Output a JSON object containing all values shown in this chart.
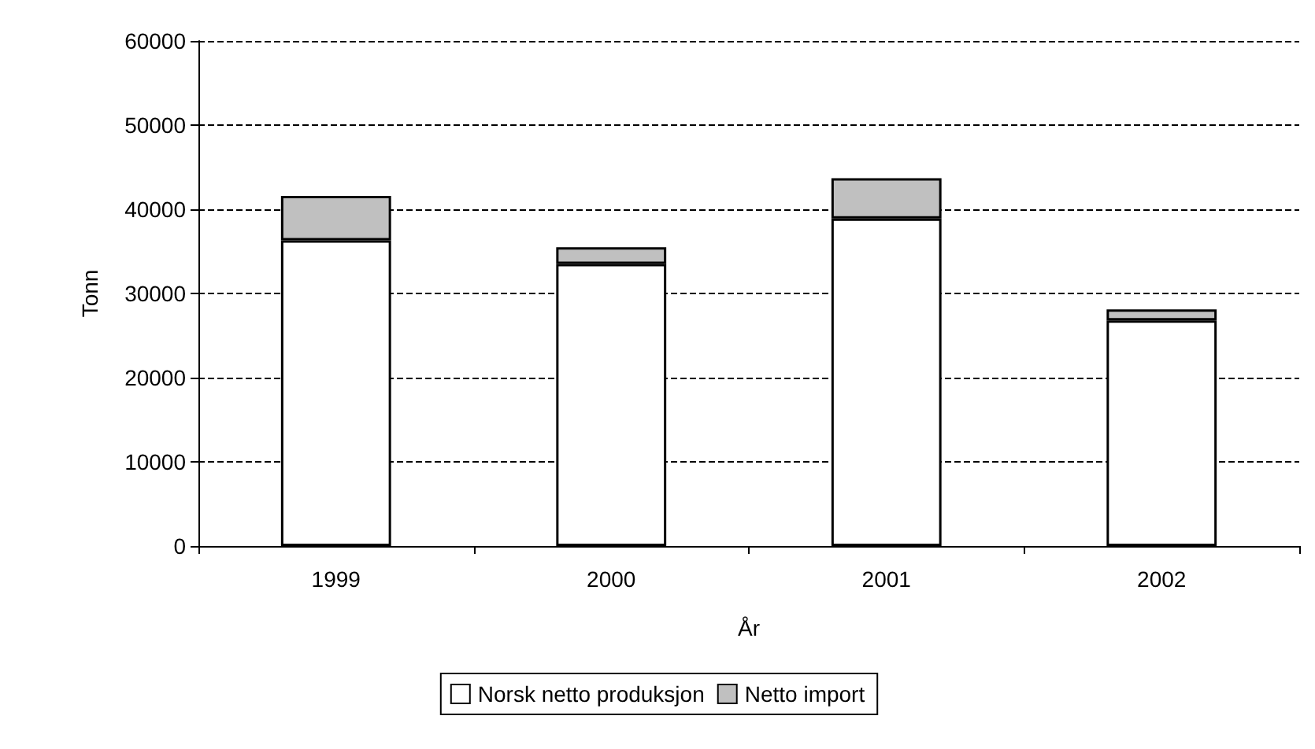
{
  "chart_data": {
    "type": "bar",
    "xlabel": "År",
    "ylabel": "Tonn",
    "categories": [
      "1999",
      "2000",
      "2001",
      "2002"
    ],
    "stacked": true,
    "series": [
      {
        "name": "Norsk netto produksjon",
        "color": "#ffffff",
        "values": [
          36300,
          33500,
          38900,
          26800
        ]
      },
      {
        "name": "Netto import",
        "color": "#c0c0c0",
        "values": [
          5300,
          2000,
          4800,
          1300
        ]
      }
    ],
    "ylim": [
      0,
      60000
    ],
    "yticks": [
      0,
      10000,
      20000,
      30000,
      40000,
      50000,
      60000
    ],
    "grid": "y",
    "legend": "bottom"
  }
}
